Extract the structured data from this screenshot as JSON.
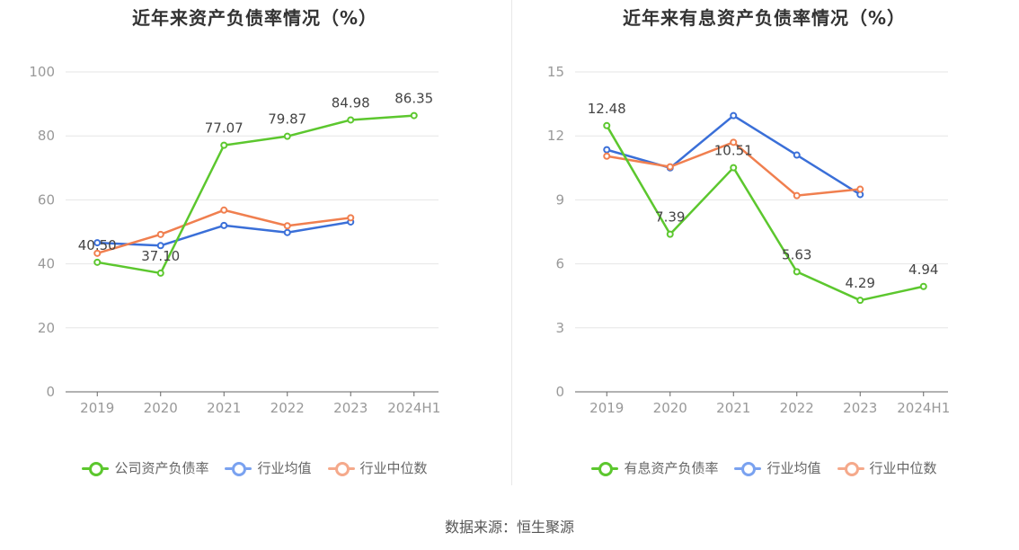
{
  "charts": [
    {
      "id": "left",
      "title": "近年来资产负债率情况（%）",
      "legend": [
        {
          "label": "公司资产负债率",
          "color": "#5cc72e"
        },
        {
          "label": "行业均值",
          "color": "#7aa2f0"
        },
        {
          "label": "行业中位数",
          "color": "#f5a98b"
        }
      ]
    },
    {
      "id": "right",
      "title": "近年来有息资产负债率情况（%）",
      "legend": [
        {
          "label": "有息资产负债率",
          "color": "#5cc72e"
        },
        {
          "label": "行业均值",
          "color": "#7aa2f0"
        },
        {
          "label": "行业中位数",
          "color": "#f5a98b"
        }
      ]
    }
  ],
  "source": "数据来源：恒生聚源",
  "chart_data": [
    {
      "type": "line",
      "title": "近年来资产负债率情况（%）",
      "categories": [
        "2019",
        "2020",
        "2021",
        "2022",
        "2023",
        "2024H1"
      ],
      "ylim": [
        0,
        100
      ],
      "yticks": [
        0,
        20,
        40,
        60,
        80,
        100
      ],
      "grid": true,
      "legend_position": "bottom",
      "series": [
        {
          "name": "公司资产负债率",
          "color": "#5cc72e",
          "values": [
            40.5,
            37.1,
            77.07,
            79.87,
            84.98,
            86.35
          ],
          "labels": [
            "40.50",
            "37.10",
            "77.07",
            "79.87",
            "84.98",
            "86.35"
          ]
        },
        {
          "name": "行业均值",
          "color": "#3a6fd8",
          "values": [
            46.6,
            45.7,
            52.0,
            49.8,
            53.1,
            null
          ]
        },
        {
          "name": "行业中位数",
          "color": "#f07f4f",
          "values": [
            43.3,
            49.2,
            56.8,
            51.9,
            54.4,
            null
          ]
        }
      ]
    },
    {
      "type": "line",
      "title": "近年来有息资产负债率情况（%）",
      "categories": [
        "2019",
        "2020",
        "2021",
        "2022",
        "2023",
        "2024H1"
      ],
      "ylim": [
        0,
        15
      ],
      "yticks": [
        0,
        3,
        6,
        9,
        12,
        15
      ],
      "grid": true,
      "legend_position": "bottom",
      "series": [
        {
          "name": "有息资产负债率",
          "color": "#5cc72e",
          "values": [
            12.48,
            7.39,
            10.51,
            5.63,
            4.29,
            4.94
          ],
          "labels": [
            "12.48",
            "7.39",
            "10.51",
            "5.63",
            "4.29",
            "4.94"
          ]
        },
        {
          "name": "行业均值",
          "color": "#3a6fd8",
          "values": [
            11.35,
            10.5,
            12.95,
            11.1,
            9.25,
            null
          ]
        },
        {
          "name": "行业中位数",
          "color": "#f07f4f",
          "values": [
            11.05,
            10.55,
            11.7,
            9.2,
            9.5,
            null
          ]
        }
      ]
    }
  ]
}
